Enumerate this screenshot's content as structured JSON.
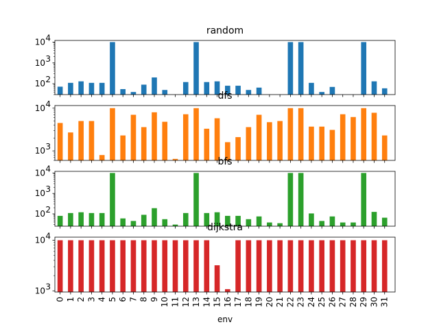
{
  "chart_data": {
    "type": "bar",
    "y_scale": "log",
    "shared_x": true,
    "xlabel": "env",
    "categories": [
      "0",
      "1",
      "2",
      "3",
      "4",
      "5",
      "6",
      "7",
      "8",
      "9",
      "10",
      "11",
      "12",
      "13",
      "14",
      "15",
      "16",
      "17",
      "18",
      "19",
      "20",
      "21",
      "22",
      "23",
      "24",
      "25",
      "26",
      "27",
      "28",
      "29",
      "30",
      "31"
    ],
    "subplots": [
      {
        "title": "random",
        "color": "#1f77b4",
        "ylim": [
          30,
          12000
        ],
        "yticks": [
          {
            "value": 100,
            "label": "10",
            "exp": "2"
          },
          {
            "value": 1000,
            "label": "10",
            "exp": "3"
          },
          {
            "value": 10000,
            "label": "10",
            "exp": "4"
          }
        ],
        "values": [
          72,
          110,
          130,
          110,
          110,
          10000,
          55,
          40,
          90,
          200,
          50,
          20,
          120,
          10000,
          120,
          130,
          80,
          80,
          50,
          65,
          30,
          25,
          10000,
          10000,
          110,
          40,
          70,
          30,
          30,
          10000,
          130,
          60
        ]
      },
      {
        "title": "dfs",
        "color": "#ff7f0e",
        "ylim": [
          600,
          11500
        ],
        "yticks": [
          {
            "value": 1000,
            "label": "10",
            "exp": "3"
          },
          {
            "value": 10000,
            "label": "10",
            "exp": "4"
          }
        ],
        "values": [
          4500,
          2700,
          5000,
          5000,
          800,
          10000,
          2300,
          7000,
          3600,
          8000,
          4800,
          650,
          7200,
          10000,
          3300,
          5800,
          1600,
          2100,
          3600,
          7000,
          4700,
          5000,
          10000,
          10000,
          3700,
          3700,
          3100,
          7200,
          6200,
          10000,
          7800,
          2300
        ]
      },
      {
        "title": "bfs",
        "color": "#2ca02c",
        "ylim": [
          25,
          12000
        ],
        "yticks": [
          {
            "value": 100,
            "label": "10",
            "exp": "2"
          },
          {
            "value": 1000,
            "label": "10",
            "exp": "3"
          },
          {
            "value": 10000,
            "label": "10",
            "exp": "4"
          }
        ],
        "values": [
          80,
          110,
          120,
          110,
          110,
          10000,
          60,
          45,
          90,
          190,
          55,
          30,
          110,
          10000,
          110,
          120,
          80,
          80,
          55,
          75,
          38,
          35,
          10000,
          10000,
          105,
          45,
          75,
          38,
          38,
          10000,
          125,
          65
        ]
      },
      {
        "title": "dijkstra",
        "color": "#d62728",
        "ylim": [
          950,
          11500
        ],
        "yticks": [
          {
            "value": 1000,
            "label": "10",
            "exp": "3"
          },
          {
            "value": 10000,
            "label": "10",
            "exp": "4"
          }
        ],
        "values": [
          10000,
          10000,
          10000,
          10000,
          10000,
          10000,
          10000,
          10000,
          10000,
          10000,
          10000,
          10000,
          10000,
          10000,
          10000,
          3200,
          1080,
          10000,
          10000,
          10000,
          10000,
          10000,
          10000,
          10000,
          10000,
          10000,
          10000,
          10000,
          10000,
          10000,
          10000,
          10000
        ]
      }
    ]
  }
}
